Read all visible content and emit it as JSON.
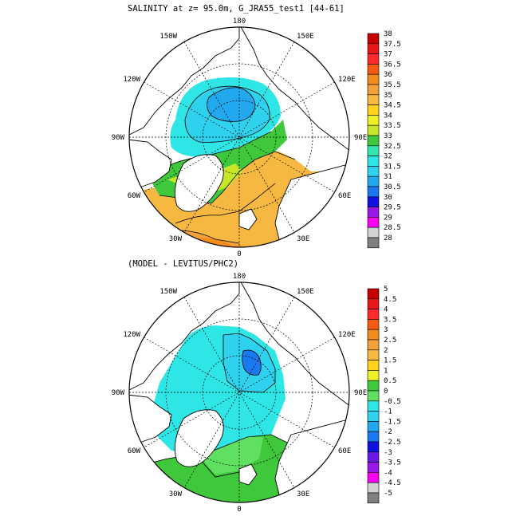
{
  "panels": [
    {
      "title": "SALINITY at z=  95.0m, G_JRA55_test1 [44-61]",
      "lon_labels": {
        "top": "180",
        "bottom": "0",
        "left": "90W",
        "right": "90E",
        "upper_left": "150W",
        "upper_right": "150E",
        "mid_upper_left": "120W",
        "mid_upper_right": "120E",
        "mid_lower_left": "60W",
        "mid_lower_right": "60E",
        "lower_left": "30W",
        "lower_right": "30E"
      },
      "colorbar": {
        "labels": [
          "38",
          "37.5",
          "37",
          "36.5",
          "36",
          "35.5",
          "35",
          "34.5",
          "34",
          "33.5",
          "33",
          "32.5",
          "32",
          "31.5",
          "31",
          "30.5",
          "30",
          "29.5",
          "29",
          "28.5",
          "28"
        ],
        "colors": [
          "#c80000",
          "#e81818",
          "#ff2a2a",
          "#f45a10",
          "#f38a1c",
          "#f3a23a",
          "#f6b840",
          "#ffd21e",
          "#f0f028",
          "#c8e628",
          "#40c83c",
          "#33e6b0",
          "#2fe6e6",
          "#2fd2ee",
          "#22a8ee",
          "#1a78f0",
          "#1010e0",
          "#9a18e6",
          "#ff00f0",
          "#d2d2d2",
          "#808080"
        ]
      }
    },
    {
      "title": "(MODEL - LEVITUS/PHC2)",
      "lon_labels": {
        "top": "180",
        "bottom": "0",
        "left": "90W",
        "right": "90E",
        "upper_left": "150W",
        "upper_right": "150E",
        "mid_upper_left": "120W",
        "mid_upper_right": "120E",
        "mid_lower_left": "60W",
        "mid_lower_right": "60E",
        "lower_left": "30W",
        "lower_right": "30E"
      },
      "colorbar": {
        "labels": [
          "5",
          "4.5",
          "4",
          "3.5",
          "3",
          "2.5",
          "2",
          "1.5",
          "1",
          "0.5",
          "0",
          "-0.5",
          "-1",
          "-1.5",
          "-2",
          "-2.5",
          "-3",
          "-3.5",
          "-4",
          "-4.5",
          "-5"
        ],
        "colors": [
          "#c80000",
          "#e81818",
          "#ff2a2a",
          "#f45a10",
          "#f38a1c",
          "#f3a23a",
          "#f6b840",
          "#ffd21e",
          "#f0f028",
          "#40c83c",
          "#60e060",
          "#2fe6e6",
          "#2fd2ee",
          "#22a8ee",
          "#1a78f0",
          "#1010e0",
          "#6a18e6",
          "#9a18e6",
          "#ff00f0",
          "#d2d2d2",
          "#808080"
        ]
      }
    }
  ]
}
